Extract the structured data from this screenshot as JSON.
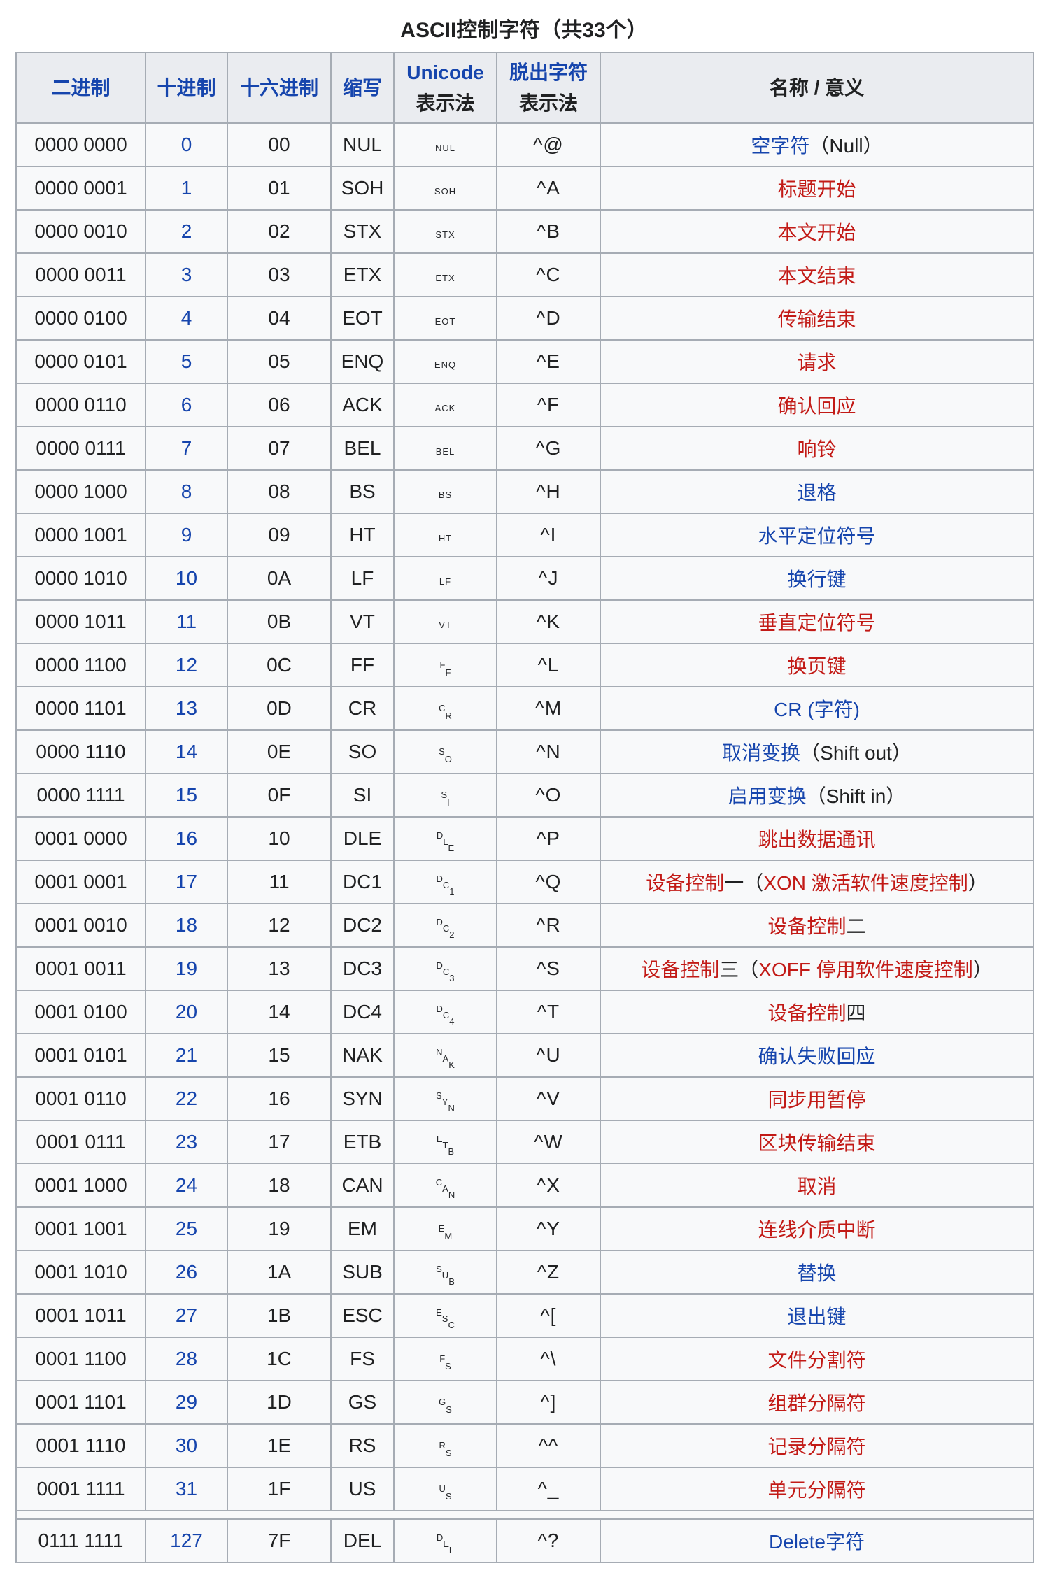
{
  "title": "ASCII控制字符（共33个）",
  "colors": {
    "link_blue": "#1645ad",
    "link_red": "#c21a16",
    "header_bg": "#eaecf0",
    "row_bg": "#f8f9fa",
    "border": "#a6acb4",
    "text": "#202122"
  },
  "table": {
    "headers": [
      {
        "id": "binary",
        "label": "二进制",
        "link": true
      },
      {
        "id": "decimal",
        "label": "十进制",
        "link": true
      },
      {
        "id": "hex",
        "label": "十六进制",
        "link": true
      },
      {
        "id": "abbr",
        "label": "缩写",
        "link": true
      },
      {
        "id": "unicode",
        "label": "Unicode",
        "link": true,
        "sublabel": "表示法"
      },
      {
        "id": "escape",
        "label": "脱出字符",
        "link": true,
        "sublabel": "表示法"
      },
      {
        "id": "name",
        "label": "名称 / 意义",
        "link": false
      }
    ],
    "rows": [
      {
        "binary": "0000 0000",
        "decimal": "0",
        "hex": "00",
        "abbr": "NUL",
        "glyph": {
          "style": "h",
          "text": "NUL"
        },
        "escape": "^@",
        "name": [
          {
            "text": "空字符",
            "style": "blue"
          },
          {
            "text": "（Null）",
            "style": "plain"
          }
        ]
      },
      {
        "binary": "0000 0001",
        "decimal": "1",
        "hex": "01",
        "abbr": "SOH",
        "glyph": {
          "style": "h",
          "text": "SOH"
        },
        "escape": "^A",
        "name": [
          {
            "text": "标题开始",
            "style": "red"
          }
        ]
      },
      {
        "binary": "0000 0010",
        "decimal": "2",
        "hex": "02",
        "abbr": "STX",
        "glyph": {
          "style": "h",
          "text": "STX"
        },
        "escape": "^B",
        "name": [
          {
            "text": "本文开始",
            "style": "red"
          }
        ]
      },
      {
        "binary": "0000 0011",
        "decimal": "3",
        "hex": "03",
        "abbr": "ETX",
        "glyph": {
          "style": "h",
          "text": "ETX"
        },
        "escape": "^C",
        "name": [
          {
            "text": "本文结束",
            "style": "red"
          }
        ]
      },
      {
        "binary": "0000 0100",
        "decimal": "4",
        "hex": "04",
        "abbr": "EOT",
        "glyph": {
          "style": "h",
          "text": "EOT"
        },
        "escape": "^D",
        "name": [
          {
            "text": "传输结束",
            "style": "red"
          }
        ]
      },
      {
        "binary": "0000 0101",
        "decimal": "5",
        "hex": "05",
        "abbr": "ENQ",
        "glyph": {
          "style": "h",
          "text": "ENQ"
        },
        "escape": "^E",
        "name": [
          {
            "text": "请求",
            "style": "red"
          }
        ]
      },
      {
        "binary": "0000 0110",
        "decimal": "6",
        "hex": "06",
        "abbr": "ACK",
        "glyph": {
          "style": "h",
          "text": "ACK"
        },
        "escape": "^F",
        "name": [
          {
            "text": "确认回应",
            "style": "red"
          }
        ]
      },
      {
        "binary": "0000 0111",
        "decimal": "7",
        "hex": "07",
        "abbr": "BEL",
        "glyph": {
          "style": "h",
          "text": "BEL"
        },
        "escape": "^G",
        "name": [
          {
            "text": "响铃",
            "style": "red"
          }
        ]
      },
      {
        "binary": "0000 1000",
        "decimal": "8",
        "hex": "08",
        "abbr": "BS",
        "glyph": {
          "style": "h",
          "text": "BS"
        },
        "escape": "^H",
        "name": [
          {
            "text": "退格",
            "style": "blue"
          }
        ]
      },
      {
        "binary": "0000 1001",
        "decimal": "9",
        "hex": "09",
        "abbr": "HT",
        "glyph": {
          "style": "h",
          "text": "HT"
        },
        "escape": "^I",
        "name": [
          {
            "text": "水平定位符号",
            "style": "blue"
          }
        ]
      },
      {
        "binary": "0000 1010",
        "decimal": "10",
        "hex": "0A",
        "abbr": "LF",
        "glyph": {
          "style": "h",
          "text": "LF"
        },
        "escape": "^J",
        "name": [
          {
            "text": "换行键",
            "style": "blue"
          }
        ]
      },
      {
        "binary": "0000 1011",
        "decimal": "11",
        "hex": "0B",
        "abbr": "VT",
        "glyph": {
          "style": "h",
          "text": "VT"
        },
        "escape": "^K",
        "name": [
          {
            "text": "垂直定位符号",
            "style": "red"
          }
        ]
      },
      {
        "binary": "0000 1100",
        "decimal": "12",
        "hex": "0C",
        "abbr": "FF",
        "glyph": {
          "style": "d",
          "letters": [
            "F",
            "F"
          ]
        },
        "escape": "^L",
        "name": [
          {
            "text": "换页键",
            "style": "red"
          }
        ]
      },
      {
        "binary": "0000 1101",
        "decimal": "13",
        "hex": "0D",
        "abbr": "CR",
        "glyph": {
          "style": "d",
          "letters": [
            "C",
            "R"
          ]
        },
        "escape": "^M",
        "name": [
          {
            "text": "CR (字符)",
            "style": "blue"
          }
        ]
      },
      {
        "binary": "0000 1110",
        "decimal": "14",
        "hex": "0E",
        "abbr": "SO",
        "glyph": {
          "style": "d",
          "letters": [
            "S",
            "O"
          ]
        },
        "escape": "^N",
        "name": [
          {
            "text": "取消变换",
            "style": "blue"
          },
          {
            "text": "（Shift out）",
            "style": "plain"
          }
        ]
      },
      {
        "binary": "0000 1111",
        "decimal": "15",
        "hex": "0F",
        "abbr": "SI",
        "glyph": {
          "style": "d",
          "letters": [
            "S",
            "I"
          ]
        },
        "escape": "^O",
        "name": [
          {
            "text": "启用变换",
            "style": "blue"
          },
          {
            "text": "（Shift in）",
            "style": "plain"
          }
        ]
      },
      {
        "binary": "0001 0000",
        "decimal": "16",
        "hex": "10",
        "abbr": "DLE",
        "glyph": {
          "style": "d",
          "letters": [
            "D",
            "L",
            "E"
          ]
        },
        "escape": "^P",
        "name": [
          {
            "text": "跳出数据通讯",
            "style": "red"
          }
        ]
      },
      {
        "binary": "0001 0001",
        "decimal": "17",
        "hex": "11",
        "abbr": "DC1",
        "glyph": {
          "style": "d",
          "letters": [
            "D",
            "C",
            "1"
          ]
        },
        "escape": "^Q",
        "name": [
          {
            "text": "设备控制",
            "style": "red"
          },
          {
            "text": "一（",
            "style": "plain"
          },
          {
            "text": "XON 激活软件速度控制",
            "style": "red"
          },
          {
            "text": "）",
            "style": "plain"
          }
        ]
      },
      {
        "binary": "0001 0010",
        "decimal": "18",
        "hex": "12",
        "abbr": "DC2",
        "glyph": {
          "style": "d",
          "letters": [
            "D",
            "C",
            "2"
          ]
        },
        "escape": "^R",
        "name": [
          {
            "text": "设备控制",
            "style": "red"
          },
          {
            "text": "二",
            "style": "plain"
          }
        ]
      },
      {
        "binary": "0001 0011",
        "decimal": "19",
        "hex": "13",
        "abbr": "DC3",
        "glyph": {
          "style": "d",
          "letters": [
            "D",
            "C",
            "3"
          ]
        },
        "escape": "^S",
        "name": [
          {
            "text": "设备控制",
            "style": "red"
          },
          {
            "text": "三（",
            "style": "plain"
          },
          {
            "text": "XOFF 停用软件速度控制",
            "style": "red"
          },
          {
            "text": "）",
            "style": "plain"
          }
        ]
      },
      {
        "binary": "0001 0100",
        "decimal": "20",
        "hex": "14",
        "abbr": "DC4",
        "glyph": {
          "style": "d",
          "letters": [
            "D",
            "C",
            "4"
          ]
        },
        "escape": "^T",
        "name": [
          {
            "text": "设备控制",
            "style": "red"
          },
          {
            "text": "四",
            "style": "plain"
          }
        ]
      },
      {
        "binary": "0001 0101",
        "decimal": "21",
        "hex": "15",
        "abbr": "NAK",
        "glyph": {
          "style": "d",
          "letters": [
            "N",
            "A",
            "K"
          ]
        },
        "escape": "^U",
        "name": [
          {
            "text": "确认失败回应",
            "style": "blue"
          }
        ]
      },
      {
        "binary": "0001 0110",
        "decimal": "22",
        "hex": "16",
        "abbr": "SYN",
        "glyph": {
          "style": "d",
          "letters": [
            "S",
            "Y",
            "N"
          ]
        },
        "escape": "^V",
        "name": [
          {
            "text": "同步用暂停",
            "style": "red"
          }
        ]
      },
      {
        "binary": "0001 0111",
        "decimal": "23",
        "hex": "17",
        "abbr": "ETB",
        "glyph": {
          "style": "d",
          "letters": [
            "E",
            "T",
            "B"
          ]
        },
        "escape": "^W",
        "name": [
          {
            "text": "区块传输结束",
            "style": "red"
          }
        ]
      },
      {
        "binary": "0001 1000",
        "decimal": "24",
        "hex": "18",
        "abbr": "CAN",
        "glyph": {
          "style": "d",
          "letters": [
            "C",
            "A",
            "N"
          ]
        },
        "escape": "^X",
        "name": [
          {
            "text": "取消",
            "style": "red"
          }
        ]
      },
      {
        "binary": "0001 1001",
        "decimal": "25",
        "hex": "19",
        "abbr": "EM",
        "glyph": {
          "style": "d",
          "letters": [
            "E",
            "M"
          ]
        },
        "escape": "^Y",
        "name": [
          {
            "text": "连线介质中断",
            "style": "red"
          }
        ]
      },
      {
        "binary": "0001 1010",
        "decimal": "26",
        "hex": "1A",
        "abbr": "SUB",
        "glyph": {
          "style": "d",
          "letters": [
            "S",
            "U",
            "B"
          ]
        },
        "escape": "^Z",
        "name": [
          {
            "text": "替换",
            "style": "blue"
          }
        ]
      },
      {
        "binary": "0001 1011",
        "decimal": "27",
        "hex": "1B",
        "abbr": "ESC",
        "glyph": {
          "style": "d",
          "letters": [
            "E",
            "S",
            "C"
          ]
        },
        "escape": "^[",
        "name": [
          {
            "text": "退出键",
            "style": "blue"
          }
        ]
      },
      {
        "binary": "0001 1100",
        "decimal": "28",
        "hex": "1C",
        "abbr": "FS",
        "glyph": {
          "style": "d",
          "letters": [
            "F",
            "S"
          ]
        },
        "escape": "^\\",
        "name": [
          {
            "text": "文件分割符",
            "style": "red"
          }
        ]
      },
      {
        "binary": "0001 1101",
        "decimal": "29",
        "hex": "1D",
        "abbr": "GS",
        "glyph": {
          "style": "d",
          "letters": [
            "G",
            "S"
          ]
        },
        "escape": "^]",
        "name": [
          {
            "text": "组群分隔符",
            "style": "red"
          }
        ]
      },
      {
        "binary": "0001 1110",
        "decimal": "30",
        "hex": "1E",
        "abbr": "RS",
        "glyph": {
          "style": "d",
          "letters": [
            "R",
            "S"
          ]
        },
        "escape": "^^",
        "name": [
          {
            "text": "记录分隔符",
            "style": "red"
          }
        ]
      },
      {
        "binary": "0001 1111",
        "decimal": "31",
        "hex": "1F",
        "abbr": "US",
        "glyph": {
          "style": "d",
          "letters": [
            "U",
            "S"
          ]
        },
        "escape": "^_",
        "name": [
          {
            "text": "单元分隔符",
            "style": "red"
          }
        ]
      },
      {
        "separator": true
      },
      {
        "binary": "0111 1111",
        "decimal": "127",
        "hex": "7F",
        "abbr": "DEL",
        "glyph": {
          "style": "d",
          "letters": [
            "D",
            "E",
            "L"
          ]
        },
        "escape": "^?",
        "name": [
          {
            "text": "Delete字符",
            "style": "blue"
          }
        ]
      }
    ]
  }
}
